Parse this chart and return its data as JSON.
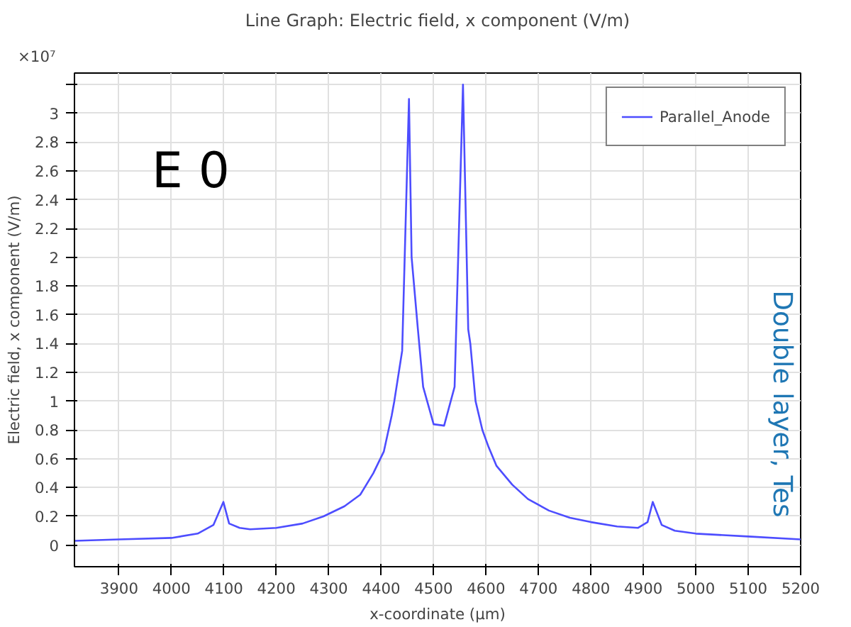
{
  "chart_data": {
    "type": "line",
    "title": "Line Graph: Electric field, x component (V/m)",
    "xlabel": "x-coordinate (µm)",
    "ylabel": "Electric field, x component (V/m)",
    "annotations": [
      "×10⁷",
      "E 0",
      "Double layer, Tes"
    ],
    "series": [
      {
        "name": "Parallel_Anode",
        "color": "#4d4dff",
        "x": [
          3815,
          3900,
          4000,
          4050,
          4080,
          4099,
          4110,
          4130,
          4150,
          4200,
          4250,
          4290,
          4330,
          4360,
          4385,
          4405,
          4420,
          4425,
          4440,
          4453,
          4458,
          4470,
          4480,
          4500,
          4520,
          4540,
          4556,
          4566,
          4570,
          4580,
          4593,
          4605,
          4620,
          4650,
          4680,
          4720,
          4760,
          4800,
          4850,
          4890,
          4908,
          4918,
          4935,
          4960,
          5000,
          5100,
          5200
        ],
        "values": [
          0.03,
          0.04,
          0.05,
          0.08,
          0.14,
          0.3,
          0.15,
          0.12,
          0.11,
          0.12,
          0.15,
          0.2,
          0.27,
          0.35,
          0.5,
          0.65,
          0.9,
          1.0,
          1.35,
          3.1,
          2.0,
          1.5,
          1.1,
          0.84,
          0.83,
          1.1,
          3.2,
          1.5,
          1.4,
          1.0,
          0.8,
          0.68,
          0.55,
          0.42,
          0.32,
          0.24,
          0.19,
          0.16,
          0.13,
          0.12,
          0.16,
          0.3,
          0.14,
          0.1,
          0.08,
          0.06,
          0.04
        ]
      }
    ],
    "xlim": [
      3815,
      5200
    ],
    "xticks": [
      3900,
      4000,
      4100,
      4200,
      4300,
      4400,
      4500,
      4600,
      4700,
      4800,
      4900,
      5000,
      5100,
      5200
    ],
    "ylim": [
      -0.15,
      3.28
    ],
    "yticks": [
      0,
      0.2,
      0.4,
      0.6,
      0.8,
      1,
      1.2,
      1.4,
      1.6,
      1.8,
      2,
      2.2,
      2.4,
      2.6,
      2.8,
      3,
      {
        "value": 3.2,
        "label": null
      }
    ],
    "grid": true,
    "legend": "top right",
    "line_style": "solid",
    "marker": "none"
  }
}
